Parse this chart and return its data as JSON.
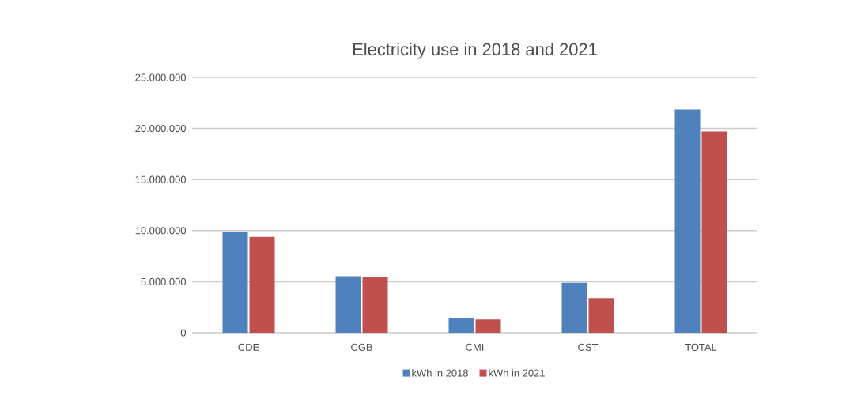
{
  "chart_data": {
    "type": "bar",
    "title": "Electricity use in 2018 and 2021",
    "categories": [
      "CDE",
      "CGB",
      "CMI",
      "CST",
      "TOTAL"
    ],
    "series": [
      {
        "name": "kWh in 2018",
        "color": "#4f81bd",
        "values": [
          9870000,
          5530000,
          1410000,
          4900000,
          21860000
        ]
      },
      {
        "name": "kWh in 2021",
        "color": "#c0504d",
        "values": [
          9380000,
          5430000,
          1300000,
          3390000,
          19690000
        ]
      }
    ],
    "ylim": [
      0,
      25000000
    ],
    "yticks": [
      0,
      {
        "value": 5000000,
        "label": "5.000.000"
      },
      {
        "value": 10000000,
        "label": "10.000.000"
      },
      {
        "value": 15000000,
        "label": "15.000.000"
      },
      {
        "value": 20000000,
        "label": "20.000.000"
      },
      {
        "value": 25000000,
        "label": "25.000.000"
      }
    ],
    "grid": "y",
    "legend": "bottom"
  }
}
